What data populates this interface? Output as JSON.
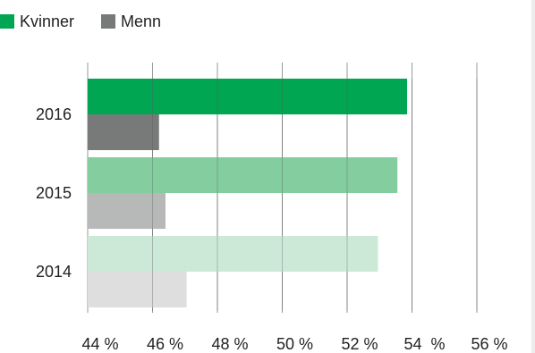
{
  "chart_data": {
    "type": "bar",
    "orientation": "horizontal",
    "categories": [
      "2016",
      "2015",
      "2014"
    ],
    "series": [
      {
        "name": "Kvinner",
        "legend_color": "#00a651",
        "values": [
          53.85,
          53.55,
          52.95
        ],
        "colors": [
          "#00a651",
          "#83cd9f",
          "#cce9d7"
        ]
      },
      {
        "name": "Menn",
        "legend_color": "#787a7a",
        "values": [
          46.2,
          46.4,
          47.05
        ],
        "colors": [
          "#787a7a",
          "#b7b8b8",
          "#dedede"
        ]
      }
    ],
    "x_ticks": [
      "44 %",
      "46 %",
      "48 %",
      "50 %",
      "52 %",
      "54  %",
      "56 %"
    ],
    "x_tick_values": [
      44,
      46,
      48,
      50,
      52,
      54,
      56
    ],
    "xlim": [
      44,
      57
    ],
    "grid": "vertical",
    "legend": "top-left"
  }
}
